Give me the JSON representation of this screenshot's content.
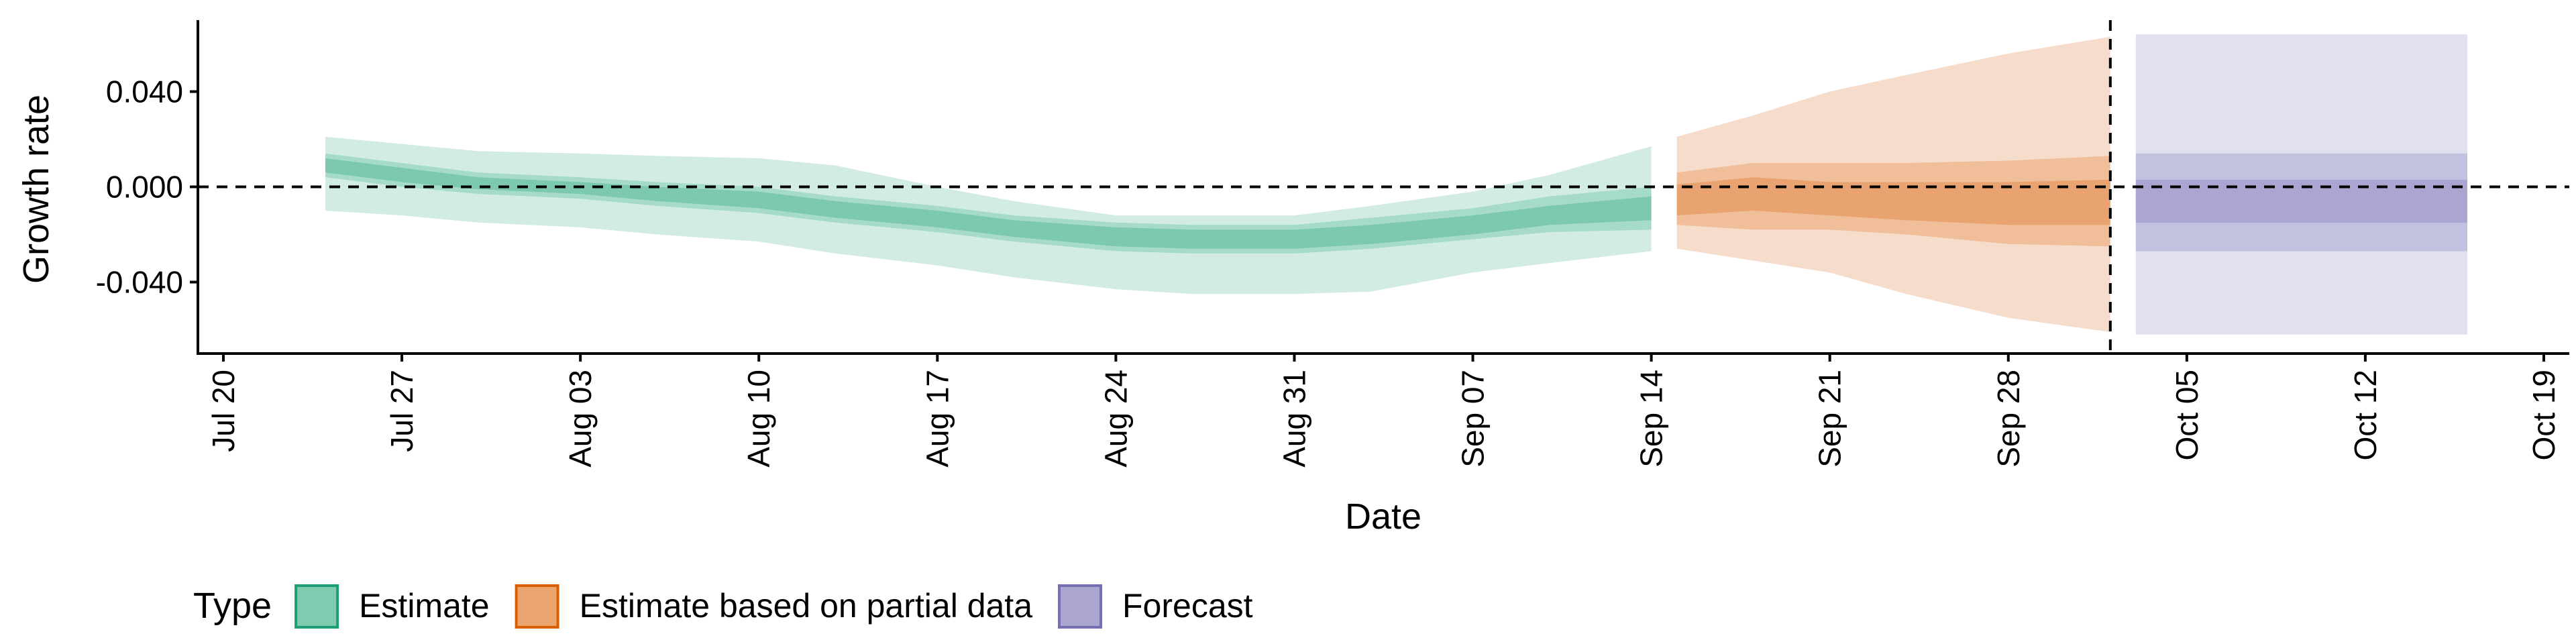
{
  "chart_data": {
    "type": "area",
    "title": "",
    "xlabel": "Date",
    "ylabel": "Growth rate",
    "x_range": [
      "2021-07-19",
      "2021-10-20"
    ],
    "ylim": [
      -0.07,
      0.07
    ],
    "x_ticks": [
      {
        "date": "2021-07-20",
        "label": "Jul 20"
      },
      {
        "date": "2021-07-27",
        "label": "Jul 27"
      },
      {
        "date": "2021-08-03",
        "label": "Aug 03"
      },
      {
        "date": "2021-08-10",
        "label": "Aug 10"
      },
      {
        "date": "2021-08-17",
        "label": "Aug 17"
      },
      {
        "date": "2021-08-24",
        "label": "Aug 24"
      },
      {
        "date": "2021-08-31",
        "label": "Aug 31"
      },
      {
        "date": "2021-09-07",
        "label": "Sep 07"
      },
      {
        "date": "2021-09-14",
        "label": "Sep 14"
      },
      {
        "date": "2021-09-21",
        "label": "Sep 21"
      },
      {
        "date": "2021-09-28",
        "label": "Sep 28"
      },
      {
        "date": "2021-10-05",
        "label": "Oct 05"
      },
      {
        "date": "2021-10-12",
        "label": "Oct 12"
      },
      {
        "date": "2021-10-19",
        "label": "Oct 19"
      }
    ],
    "y_ticks": [
      {
        "value": 0.04,
        "label": "0.040"
      },
      {
        "value": 0.0,
        "label": "0.000"
      },
      {
        "value": -0.04,
        "label": "-0.040"
      }
    ],
    "hline": 0.0,
    "vline": "2021-10-02",
    "grid": false,
    "legend": {
      "title": "Type",
      "position": "bottom-left",
      "entries": [
        {
          "label": "Estimate",
          "fill": "#7fcbb0",
          "border": "#1b9e77"
        },
        {
          "label": "Estimate based on partial data",
          "fill": "#eba46e",
          "border": "#d95f02"
        },
        {
          "label": "Forecast",
          "fill": "#aaa6d0",
          "border": "#7570b3"
        }
      ]
    },
    "series": [
      {
        "name": "Estimate",
        "colors": {
          "outer": "#d2ece3",
          "mid": "#a6dbc8",
          "inner": "#7cc9ae"
        },
        "x": [
          "2021-07-24",
          "2021-07-27",
          "2021-07-30",
          "2021-08-03",
          "2021-08-06",
          "2021-08-10",
          "2021-08-13",
          "2021-08-17",
          "2021-08-20",
          "2021-08-24",
          "2021-08-27",
          "2021-08-31",
          "2021-09-03",
          "2021-09-07",
          "2021-09-10",
          "2021-09-14"
        ],
        "outer_upper": [
          0.021,
          0.018,
          0.015,
          0.014,
          0.013,
          0.012,
          0.009,
          0.0,
          -0.006,
          -0.012,
          -0.012,
          -0.012,
          -0.008,
          -0.002,
          0.005,
          0.017
        ],
        "outer_lower": [
          -0.01,
          -0.012,
          -0.015,
          -0.017,
          -0.02,
          -0.023,
          -0.028,
          -0.033,
          -0.038,
          -0.043,
          -0.045,
          -0.045,
          -0.044,
          -0.036,
          -0.032,
          -0.027
        ],
        "mid_upper": [
          0.014,
          0.01,
          0.006,
          0.004,
          0.002,
          0.0,
          -0.004,
          -0.008,
          -0.012,
          -0.015,
          -0.016,
          -0.016,
          -0.013,
          -0.009,
          -0.004,
          0.0
        ],
        "mid_lower": [
          0.004,
          0.0,
          -0.003,
          -0.005,
          -0.008,
          -0.011,
          -0.015,
          -0.019,
          -0.023,
          -0.027,
          -0.028,
          -0.028,
          -0.026,
          -0.022,
          -0.019,
          -0.018
        ],
        "inner_upper": [
          0.012,
          0.008,
          0.004,
          0.002,
          0.0,
          -0.002,
          -0.006,
          -0.01,
          -0.014,
          -0.017,
          -0.018,
          -0.018,
          -0.016,
          -0.012,
          -0.008,
          -0.004
        ],
        "inner_lower": [
          0.006,
          0.002,
          -0.001,
          -0.003,
          -0.006,
          -0.009,
          -0.013,
          -0.017,
          -0.021,
          -0.025,
          -0.026,
          -0.026,
          -0.024,
          -0.02,
          -0.016,
          -0.014
        ]
      },
      {
        "name": "Estimate based on partial data",
        "colors": {
          "outer": "#f6dccb",
          "mid": "#f0bf99",
          "inner": "#e9a370"
        },
        "x": [
          "2021-09-15",
          "2021-09-18",
          "2021-09-21",
          "2021-09-24",
          "2021-09-28",
          "2021-10-02"
        ],
        "outer_upper": [
          0.021,
          0.03,
          0.04,
          0.047,
          0.056,
          0.063
        ],
        "outer_lower": [
          -0.026,
          -0.031,
          -0.036,
          -0.045,
          -0.055,
          -0.061
        ],
        "mid_upper": [
          0.006,
          0.01,
          0.01,
          0.01,
          0.011,
          0.013
        ],
        "mid_lower": [
          -0.016,
          -0.018,
          -0.018,
          -0.02,
          -0.024,
          -0.025
        ],
        "inner_upper": [
          0.001,
          0.004,
          0.002,
          0.002,
          0.002,
          0.003
        ],
        "inner_lower": [
          -0.012,
          -0.01,
          -0.012,
          -0.014,
          -0.016,
          -0.016
        ]
      },
      {
        "name": "Forecast",
        "colors": {
          "outer": "#e1e0ef",
          "mid": "#c3c1e0",
          "inner": "#aba6d1"
        },
        "x": [
          "2021-10-03",
          "2021-10-16"
        ],
        "outer_upper": [
          0.064,
          0.064
        ],
        "outer_lower": [
          -0.062,
          -0.062
        ],
        "mid_upper": [
          0.014,
          0.014
        ],
        "mid_lower": [
          -0.027,
          -0.027
        ],
        "inner_upper": [
          0.003,
          0.003
        ],
        "inner_lower": [
          -0.015,
          -0.015
        ]
      }
    ]
  }
}
